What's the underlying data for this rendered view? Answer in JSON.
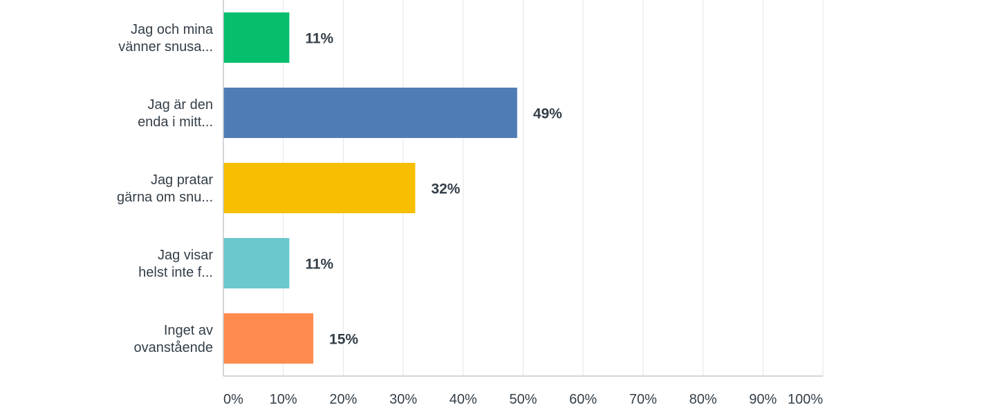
{
  "chart_data": {
    "type": "bar",
    "orientation": "horizontal",
    "categories": [
      [
        "Jag och mina",
        "vänner snusa..."
      ],
      [
        "Jag är den",
        "enda i mitt..."
      ],
      [
        "Jag pratar",
        "gärna om snu..."
      ],
      [
        "Jag visar",
        "helst inte f..."
      ],
      [
        "Inget av",
        "ovanstående"
      ]
    ],
    "values": [
      11,
      49,
      32,
      11,
      15
    ],
    "value_labels": [
      "11%",
      "49%",
      "32%",
      "11%",
      "15%"
    ],
    "colors": [
      "#05bf6e",
      "#507cb6",
      "#f8be00",
      "#6bc8cd",
      "#ff8b4f"
    ],
    "xlim": [
      0,
      100
    ],
    "x_ticks": [
      0,
      10,
      20,
      30,
      40,
      50,
      60,
      70,
      80,
      90,
      100
    ],
    "x_tick_labels": [
      "0%",
      "10%",
      "20%",
      "30%",
      "40%",
      "50%",
      "60%",
      "70%",
      "80%",
      "90%",
      "100%"
    ],
    "grid": true,
    "title": "",
    "xlabel": "",
    "ylabel": ""
  }
}
